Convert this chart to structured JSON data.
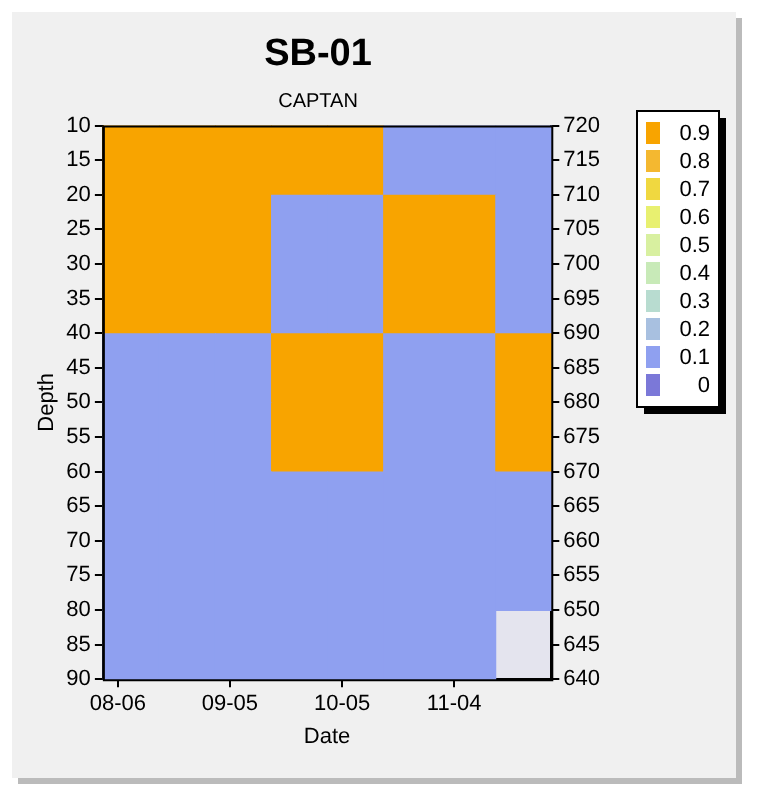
{
  "chart_data": {
    "type": "heatmap",
    "title": "SB-01",
    "subtitle": "CAPTAN",
    "xlabel": "Date",
    "ylabel": "Depth",
    "x": [
      "--08-09T12:00",
      "--08-24T12:00",
      "--09-08T12:00",
      "--09-23T12:00",
      "--10-08T12:00",
      "--10-23T12:00",
      "--11-07T12:00",
      "--11-22T12:00"
    ],
    "y": [
      15,
      25,
      35,
      45,
      55,
      65,
      75,
      85
    ],
    "cells": [
      [
        0.9,
        0.9,
        0.9,
        0.9,
        0.9,
        0.1,
        0.1,
        0.1
      ],
      [
        0.9,
        0.9,
        0.9,
        0.1,
        0.1,
        0.9,
        0.9,
        0.1
      ],
      [
        0.9,
        0.9,
        0.9,
        0.1,
        0.1,
        0.9,
        0.9,
        0.1
      ],
      [
        0.1,
        0.1,
        0.1,
        0.9,
        0.9,
        0.1,
        0.1,
        0.9
      ],
      [
        0.1,
        0.1,
        0.1,
        0.9,
        0.9,
        0.1,
        0.1,
        0.9
      ],
      [
        0.1,
        0.1,
        0.1,
        0.1,
        0.1,
        0.1,
        0.1,
        0.1
      ],
      [
        0.1,
        0.1,
        0.1,
        0.1,
        0.1,
        0.1,
        0.1,
        0.1
      ],
      [
        0.1,
        0.1,
        0.1,
        0.1,
        0.1,
        0.1,
        0.1,
        null
      ]
    ],
    "xlim": [
      "--08-02",
      "--11-30"
    ],
    "xticks": [
      {
        "value": "--08-06",
        "label": "08-06"
      },
      {
        "value": "--09-05",
        "label": "09-05"
      },
      {
        "value": "--10-05",
        "label": "10-05"
      },
      {
        "value": "--11-04",
        "label": "11-04"
      }
    ],
    "ylim": [
      90,
      10
    ],
    "yticks": [
      10,
      15,
      20,
      25,
      30,
      35,
      40,
      45,
      50,
      55,
      60,
      65,
      70,
      75,
      80,
      85,
      90
    ],
    "y2lim": [
      640,
      720
    ],
    "y2ticks": [
      640,
      645,
      650,
      655,
      660,
      665,
      670,
      675,
      680,
      685,
      690,
      695,
      700,
      705,
      710,
      715,
      720
    ],
    "cticks": [
      0,
      0.1,
      0.2,
      0.3,
      0.4,
      0.5,
      0.6,
      0.7,
      0.8,
      0.9
    ],
    "grid": false
  }
}
